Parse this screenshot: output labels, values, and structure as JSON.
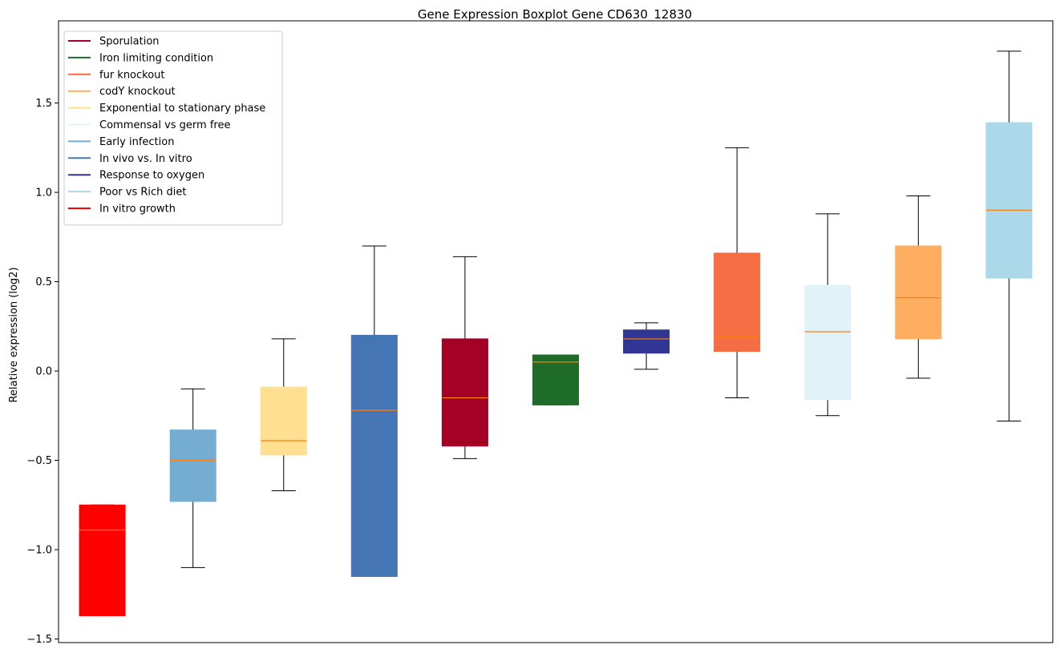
{
  "chart_data": {
    "type": "boxplot",
    "title": "Gene Expression Boxplot Gene CD630_12830",
    "xlabel": "",
    "ylabel": "Relative expression (log2)",
    "ylim": [
      -1.52,
      1.96
    ],
    "yticks": [
      -1.5,
      -1.0,
      -0.5,
      0.0,
      0.5,
      1.0,
      1.5
    ],
    "ytick_labels": [
      "−1.5",
      "−1.0",
      "−0.5",
      "0.0",
      "0.5",
      "1.0",
      "1.5"
    ],
    "legend_position": "upper-left",
    "legend": [
      {
        "label": "Sporulation",
        "color": "#a50026"
      },
      {
        "label": "Iron limiting condition",
        "color": "#1f6b2a"
      },
      {
        "label": "fur knockout",
        "color": "#f46d43"
      },
      {
        "label": "codY knockout",
        "color": "#fdae61"
      },
      {
        "label": "Exponential to stationary phase",
        "color": "#fee090"
      },
      {
        "label": "Commensal vs germ free",
        "color": "#e0f3f8"
      },
      {
        "label": "Early infection",
        "color": "#74add1"
      },
      {
        "label": "In vivo vs. In vitro",
        "color": "#4575b4"
      },
      {
        "label": "Response to oxygen",
        "color": "#313695"
      },
      {
        "label": "Poor vs Rich diet",
        "color": "#abd9e9"
      },
      {
        "label": "In vitro growth",
        "color": "#ff0000"
      }
    ],
    "median_color": "#ff7f0e",
    "boxes": [
      {
        "group": "In vitro growth",
        "color": "#ff0000",
        "whisker_low": -1.37,
        "q1": -1.37,
        "median": -0.89,
        "q3": -0.75,
        "whisker_high": -0.75
      },
      {
        "group": "Early infection",
        "color": "#74add1",
        "whisker_low": -1.1,
        "q1": -0.73,
        "median": -0.5,
        "q3": -0.33,
        "whisker_high": -0.1
      },
      {
        "group": "Exponential to stationary phase",
        "color": "#fee090",
        "whisker_low": -0.67,
        "q1": -0.47,
        "median": -0.39,
        "q3": -0.09,
        "whisker_high": 0.18
      },
      {
        "group": "In vivo vs. In vitro",
        "color": "#4575b4",
        "whisker_low": -1.15,
        "q1": -1.15,
        "median": -0.22,
        "q3": 0.2,
        "whisker_high": 0.7
      },
      {
        "group": "Sporulation",
        "color": "#a50026",
        "whisker_low": -0.49,
        "q1": -0.42,
        "median": -0.15,
        "q3": 0.18,
        "whisker_high": 0.64
      },
      {
        "group": "Iron limiting condition",
        "color": "#1f6b2a",
        "whisker_low": -0.19,
        "q1": -0.19,
        "median": 0.05,
        "q3": 0.09,
        "whisker_high": 0.09
      },
      {
        "group": "Response to oxygen",
        "color": "#313695",
        "whisker_low": 0.01,
        "q1": 0.1,
        "median": 0.18,
        "q3": 0.23,
        "whisker_high": 0.27
      },
      {
        "group": "fur knockout",
        "color": "#f46d43",
        "whisker_low": -0.15,
        "q1": 0.11,
        "median": 0.19,
        "q3": 0.66,
        "whisker_high": 1.25
      },
      {
        "group": "Commensal vs germ free",
        "color": "#e0f3f8",
        "whisker_low": -0.25,
        "q1": -0.16,
        "median": 0.22,
        "q3": 0.48,
        "whisker_high": 0.88
      },
      {
        "group": "codY knockout",
        "color": "#fdae61",
        "whisker_low": -0.04,
        "q1": 0.18,
        "median": 0.41,
        "q3": 0.7,
        "whisker_high": 0.98
      },
      {
        "group": "Poor vs Rich diet",
        "color": "#abd9e9",
        "whisker_low": -0.28,
        "q1": 0.52,
        "median": 0.9,
        "q3": 1.39,
        "whisker_high": 1.79
      }
    ]
  }
}
